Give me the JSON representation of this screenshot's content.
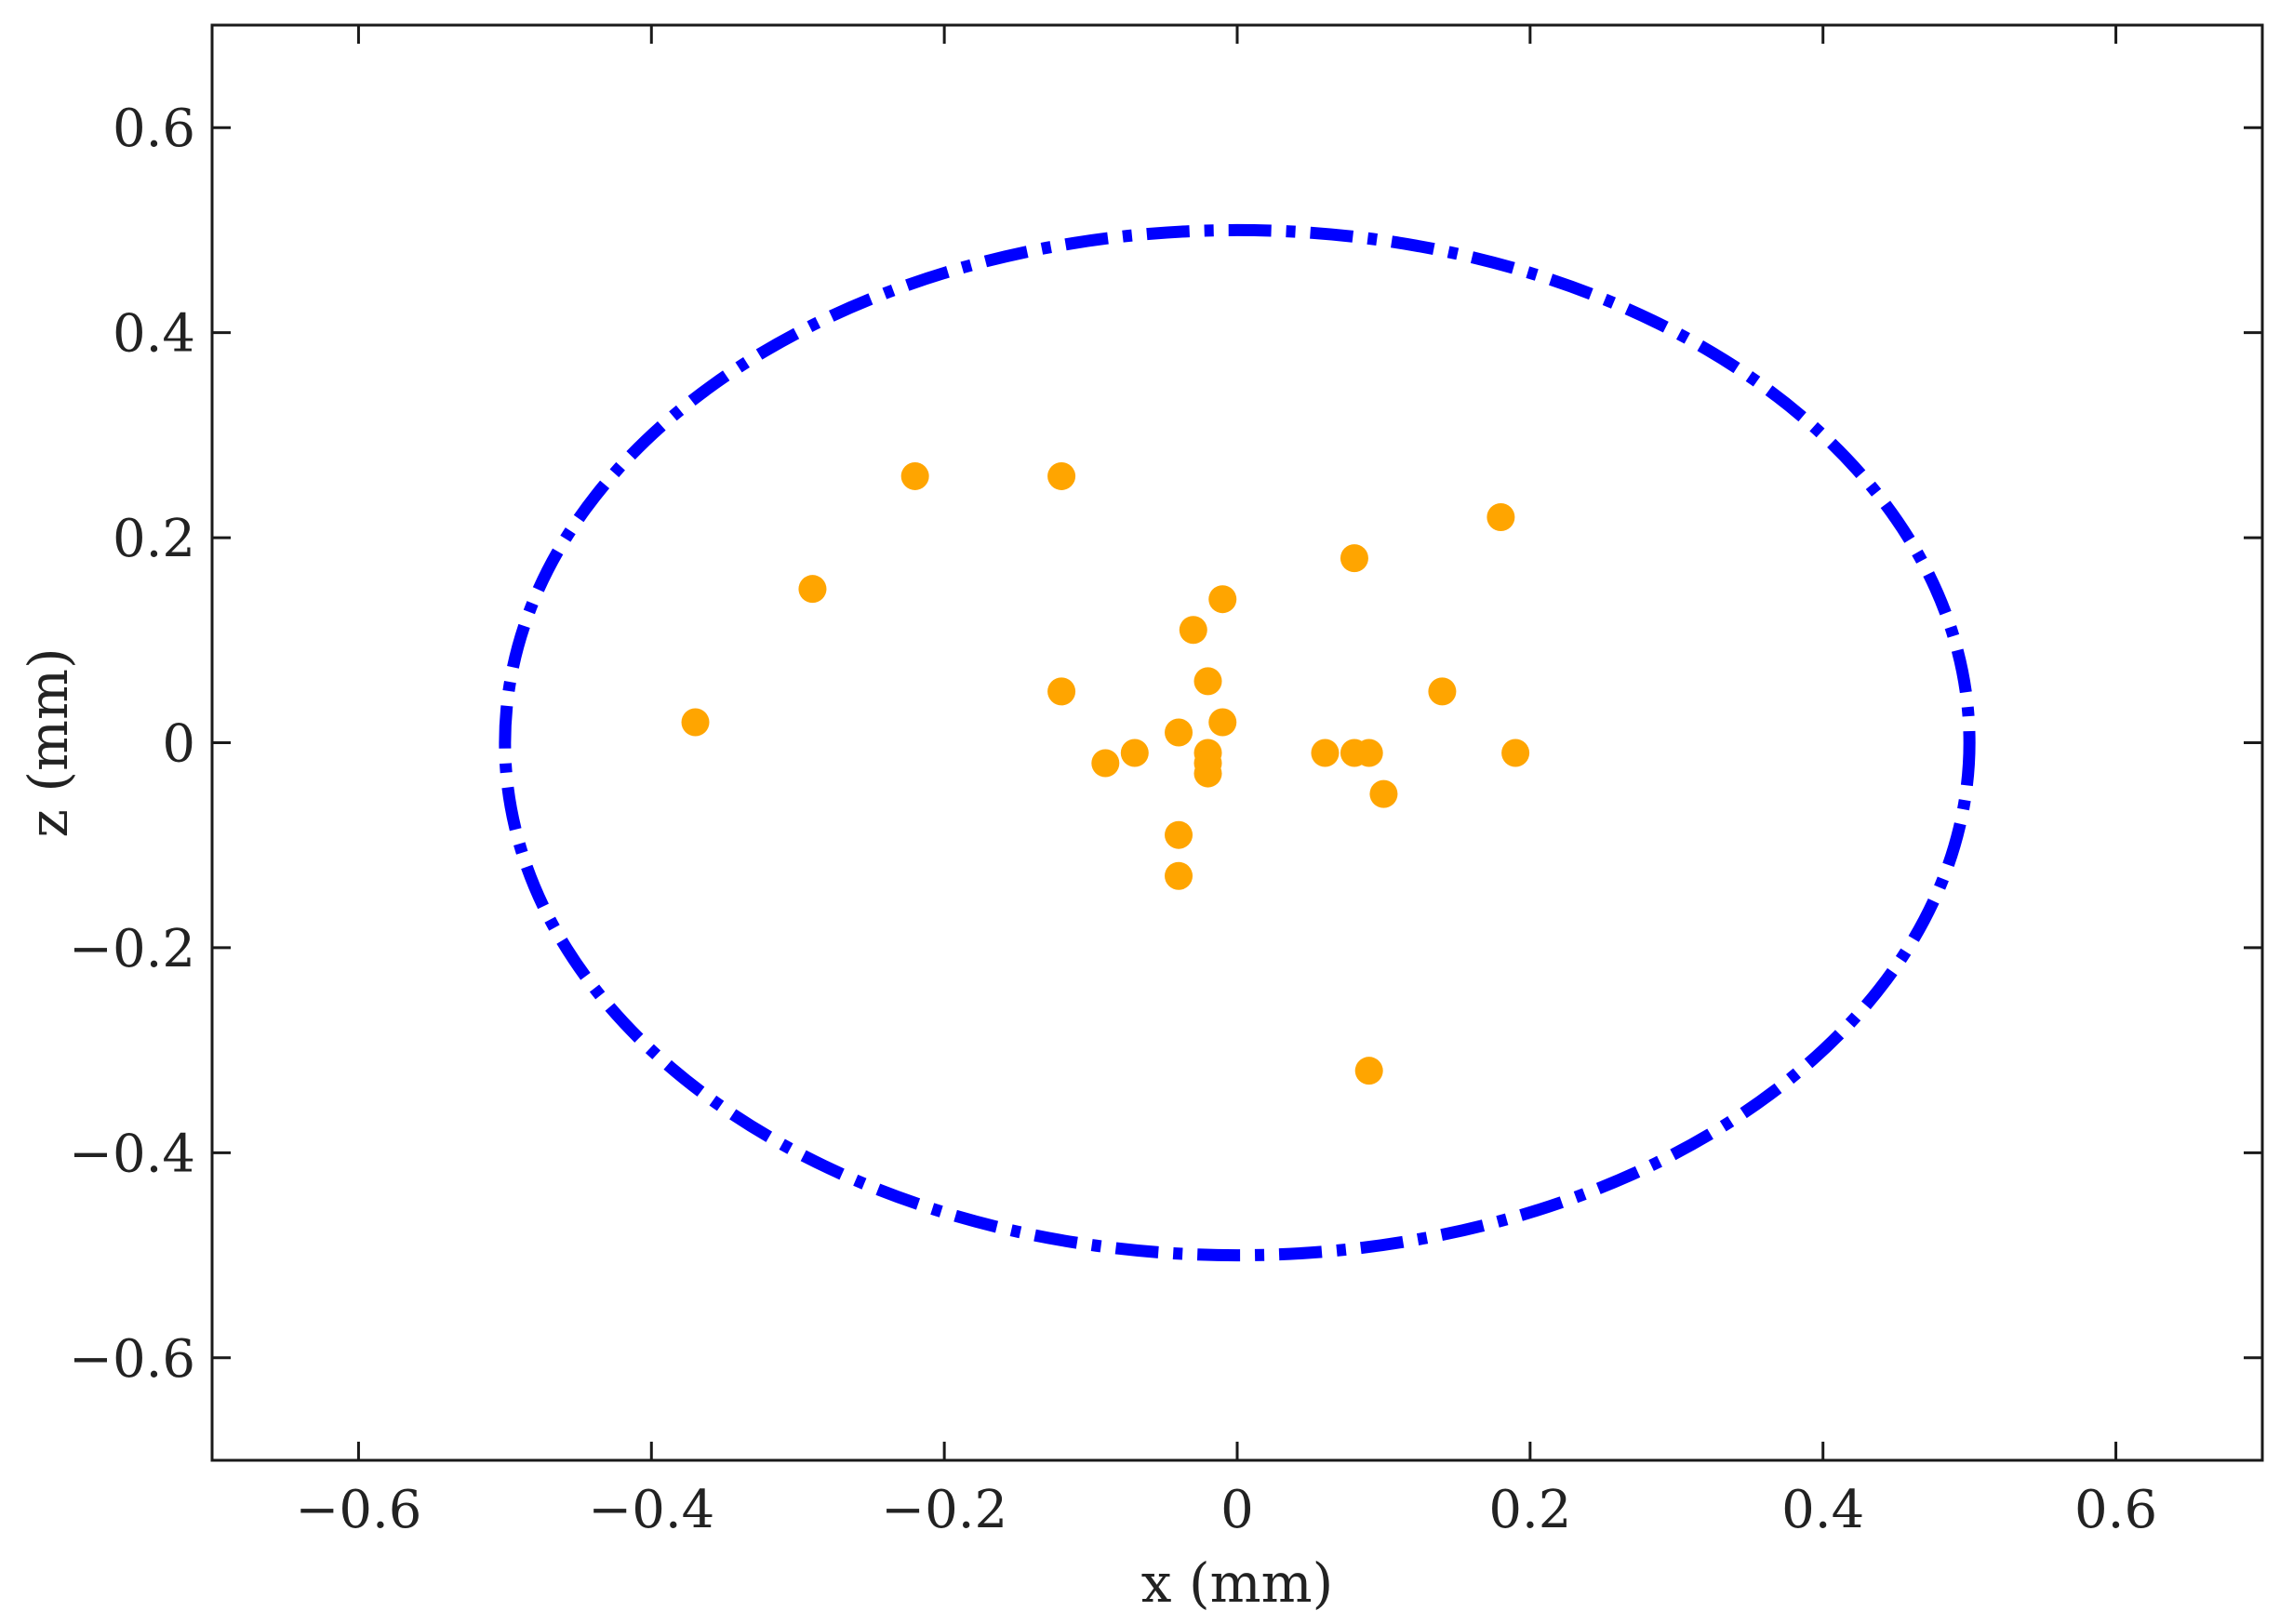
{
  "chart_data": {
    "type": "scatter",
    "xlabel": "x (mm)",
    "ylabel": "z (mm)",
    "xlim": [
      -0.7,
      0.7
    ],
    "ylim": [
      -0.7,
      0.7
    ],
    "grid": false,
    "x_ticks": [
      -0.6,
      -0.4,
      -0.2,
      0,
      0.2,
      0.4,
      0.6
    ],
    "x_tick_labels": [
      "−0.6",
      "−0.4",
      "−0.2",
      "0",
      "0.2",
      "0.4",
      "0.6"
    ],
    "y_ticks": [
      0.6,
      0.4,
      0.2,
      0,
      -0.2,
      -0.4,
      -0.6
    ],
    "y_tick_labels": [
      "0.6",
      "0.4",
      "0.2",
      "0",
      "−0.2",
      "−0.4",
      "−0.6"
    ],
    "boundary": {
      "shape": "ellipse",
      "center": [
        0,
        0
      ],
      "radius_x": 0.5,
      "radius_z": 0.5,
      "color": "#0000ff",
      "line_style": "dash-dot"
    },
    "points": {
      "color": "#ffa500",
      "data": [
        {
          "x": -0.37,
          "y": 0.02
        },
        {
          "x": -0.29,
          "y": 0.15
        },
        {
          "x": -0.22,
          "y": 0.26
        },
        {
          "x": -0.12,
          "y": 0.26
        },
        {
          "x": -0.12,
          "y": 0.05
        },
        {
          "x": -0.09,
          "y": -0.02
        },
        {
          "x": -0.07,
          "y": -0.01
        },
        {
          "x": -0.04,
          "y": 0.01
        },
        {
          "x": -0.04,
          "y": -0.09
        },
        {
          "x": -0.04,
          "y": -0.13
        },
        {
          "x": -0.03,
          "y": 0.11
        },
        {
          "x": -0.02,
          "y": 0.06
        },
        {
          "x": -0.02,
          "y": -0.01
        },
        {
          "x": -0.02,
          "y": -0.02
        },
        {
          "x": -0.02,
          "y": -0.03
        },
        {
          "x": -0.01,
          "y": 0.14
        },
        {
          "x": -0.01,
          "y": 0.02
        },
        {
          "x": 0.06,
          "y": -0.01
        },
        {
          "x": 0.08,
          "y": 0.18
        },
        {
          "x": 0.08,
          "y": -0.01
        },
        {
          "x": 0.09,
          "y": -0.01
        },
        {
          "x": 0.09,
          "y": -0.32
        },
        {
          "x": 0.1,
          "y": -0.05
        },
        {
          "x": 0.14,
          "y": 0.05
        },
        {
          "x": 0.18,
          "y": 0.22
        },
        {
          "x": 0.19,
          "y": -0.01
        }
      ]
    }
  }
}
